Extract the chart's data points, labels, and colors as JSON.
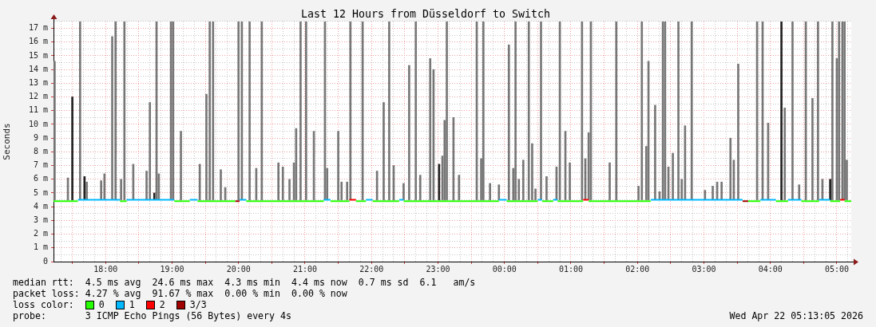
{
  "chart_data": {
    "type": "line",
    "title": "Last 12 Hours from Düsseldorf to Switch",
    "ylabel": "Seconds",
    "xlim": [
      "2026-04-21T17:13",
      "2026-04-22T05:13"
    ],
    "ylim": [
      0,
      17.5
    ],
    "xticks": [
      {
        "value": "2026-04-21T17:20",
        "label": null
      },
      {
        "value": "2026-04-21T17:30",
        "label": null
      },
      {
        "value": "2026-04-21T17:40",
        "label": null
      },
      {
        "value": "2026-04-21T17:50",
        "label": null
      },
      {
        "value": "2026-04-21T18:00",
        "label": "18:00"
      },
      {
        "value": "2026-04-21T18:10",
        "label": null
      },
      {
        "value": "2026-04-21T18:20",
        "label": null
      },
      {
        "value": "2026-04-21T18:30",
        "label": null
      },
      {
        "value": "2026-04-21T18:40",
        "label": null
      },
      {
        "value": "2026-04-21T18:50",
        "label": null
      },
      {
        "value": "2026-04-21T19:00",
        "label": "19:00"
      },
      {
        "value": "2026-04-21T19:10",
        "label": null
      },
      {
        "value": "2026-04-21T19:20",
        "label": null
      },
      {
        "value": "2026-04-21T19:30",
        "label": null
      },
      {
        "value": "2026-04-21T19:40",
        "label": null
      },
      {
        "value": "2026-04-21T19:50",
        "label": null
      },
      {
        "value": "2026-04-21T20:00",
        "label": "20:00"
      },
      {
        "value": "2026-04-21T20:10",
        "label": null
      },
      {
        "value": "2026-04-21T20:20",
        "label": null
      },
      {
        "value": "2026-04-21T20:30",
        "label": null
      },
      {
        "value": "2026-04-21T20:40",
        "label": null
      },
      {
        "value": "2026-04-21T20:50",
        "label": null
      },
      {
        "value": "2026-04-21T21:00",
        "label": "21:00"
      },
      {
        "value": "2026-04-21T21:10",
        "label": null
      },
      {
        "value": "2026-04-21T21:20",
        "label": null
      },
      {
        "value": "2026-04-21T21:30",
        "label": null
      },
      {
        "value": "2026-04-21T21:40",
        "label": null
      },
      {
        "value": "2026-04-21T21:50",
        "label": null
      },
      {
        "value": "2026-04-21T22:00",
        "label": "22:00"
      },
      {
        "value": "2026-04-21T22:10",
        "label": null
      },
      {
        "value": "2026-04-21T22:20",
        "label": null
      },
      {
        "value": "2026-04-21T22:30",
        "label": null
      },
      {
        "value": "2026-04-21T22:40",
        "label": null
      },
      {
        "value": "2026-04-21T22:50",
        "label": null
      },
      {
        "value": "2026-04-21T23:00",
        "label": "23:00"
      },
      {
        "value": "2026-04-21T23:10",
        "label": null
      },
      {
        "value": "2026-04-21T23:20",
        "label": null
      },
      {
        "value": "2026-04-21T23:30",
        "label": null
      },
      {
        "value": "2026-04-21T23:40",
        "label": null
      },
      {
        "value": "2026-04-21T23:50",
        "label": null
      },
      {
        "value": "2026-04-22T00:00",
        "label": "00:00"
      },
      {
        "value": "2026-04-22T00:10",
        "label": null
      },
      {
        "value": "2026-04-22T00:20",
        "label": null
      },
      {
        "value": "2026-04-22T00:30",
        "label": null
      },
      {
        "value": "2026-04-22T00:40",
        "label": null
      },
      {
        "value": "2026-04-22T00:50",
        "label": null
      },
      {
        "value": "2026-04-22T01:00",
        "label": "01:00"
      },
      {
        "value": "2026-04-22T01:10",
        "label": null
      },
      {
        "value": "2026-04-22T01:20",
        "label": null
      },
      {
        "value": "2026-04-22T01:30",
        "label": null
      },
      {
        "value": "2026-04-22T01:40",
        "label": null
      },
      {
        "value": "2026-04-22T01:50",
        "label": null
      },
      {
        "value": "2026-04-22T02:00",
        "label": "02:00"
      },
      {
        "value": "2026-04-22T02:10",
        "label": null
      },
      {
        "value": "2026-04-22T02:20",
        "label": null
      },
      {
        "value": "2026-04-22T02:30",
        "label": null
      },
      {
        "value": "2026-04-22T02:40",
        "label": null
      },
      {
        "value": "2026-04-22T02:50",
        "label": null
      },
      {
        "value": "2026-04-22T03:00",
        "label": "03:00"
      },
      {
        "value": "2026-04-22T03:10",
        "label": null
      },
      {
        "value": "2026-04-22T03:20",
        "label": null
      },
      {
        "value": "2026-04-22T03:30",
        "label": null
      },
      {
        "value": "2026-04-22T03:40",
        "label": null
      },
      {
        "value": "2026-04-22T03:50",
        "label": null
      },
      {
        "value": "2026-04-22T04:00",
        "label": "04:00"
      },
      {
        "value": "2026-04-22T04:10",
        "label": null
      },
      {
        "value": "2026-04-22T04:20",
        "label": null
      },
      {
        "value": "2026-04-22T04:30",
        "label": null
      },
      {
        "value": "2026-04-22T04:40",
        "label": null
      },
      {
        "value": "2026-04-22T04:50",
        "label": null
      },
      {
        "value": "2026-04-22T05:00",
        "label": "05:00"
      },
      {
        "value": "2026-04-22T05:10",
        "label": null
      }
    ],
    "yticks": [
      0,
      {
        "value": 0.5,
        "label": null
      },
      {
        "value": 1,
        "label": "1 m"
      },
      {
        "value": 1.5,
        "label": null
      },
      {
        "value": 2,
        "label": "2 m"
      },
      {
        "value": 2.5,
        "label": null
      },
      {
        "value": 3,
        "label": "3 m"
      },
      {
        "value": 3.5,
        "label": null
      },
      {
        "value": 4,
        "label": "4 m"
      },
      {
        "value": 4.5,
        "label": null
      },
      {
        "value": 5,
        "label": "5 m"
      },
      {
        "value": 5.5,
        "label": null
      },
      {
        "value": 6,
        "label": "6 m"
      },
      {
        "value": 6.5,
        "label": null
      },
      {
        "value": 7,
        "label": "7 m"
      },
      {
        "value": 7.5,
        "label": null
      },
      {
        "value": 8,
        "label": "8 m"
      },
      {
        "value": 8.5,
        "label": null
      },
      {
        "value": 9,
        "label": "9 m"
      },
      {
        "value": 9.5,
        "label": null
      },
      {
        "value": 10,
        "label": "10 m"
      },
      {
        "value": 10.5,
        "label": null
      },
      {
        "value": 11,
        "label": "11 m"
      },
      {
        "value": 11.5,
        "label": null
      },
      {
        "value": 12,
        "label": "12 m"
      },
      {
        "value": 12.5,
        "label": null
      },
      {
        "value": 13,
        "label": "13 m"
      },
      {
        "value": 13.5,
        "label": null
      },
      {
        "value": 14,
        "label": "14 m"
      },
      {
        "value": 14.5,
        "label": null
      },
      {
        "value": 15,
        "label": "15 m"
      },
      {
        "value": 15.5,
        "label": null
      },
      {
        "value": 16,
        "label": "16 m"
      },
      {
        "value": 16.5,
        "label": null
      },
      {
        "value": 17,
        "label": "17 m"
      },
      {
        "value": 17.5,
        "label": null
      }
    ],
    "grid": true,
    "legend": "bottom left",
    "legend_title": "loss color:",
    "series": [
      {
        "type": "bar",
        "color": "#777777",
        "x": [
          "2026-04-21T17:14",
          "2026-04-21T17:26",
          "2026-04-21T17:37",
          "2026-04-21T17:43",
          "2026-04-21T17:56",
          "2026-04-21T17:59",
          "2026-04-21T18:06",
          "2026-04-21T18:09",
          "2026-04-21T18:14",
          "2026-04-21T18:17",
          "2026-04-21T18:25",
          "2026-04-21T18:37",
          "2026-04-21T18:40",
          "2026-04-21T18:46",
          "2026-04-21T18:48",
          "2026-04-21T18:59",
          "2026-04-21T19:01",
          "2026-04-21T19:08",
          "2026-04-21T19:25",
          "2026-04-21T19:31",
          "2026-04-21T19:34",
          "2026-04-21T19:37",
          "2026-04-21T19:44",
          "2026-04-21T19:48",
          "2026-04-21T20:00",
          "2026-04-21T20:03",
          "2026-04-21T20:10",
          "2026-04-21T20:16",
          "2026-04-21T20:21",
          "2026-04-21T20:36",
          "2026-04-21T20:40",
          "2026-04-21T20:46",
          "2026-04-21T20:50",
          "2026-04-21T20:52",
          "2026-04-21T20:56",
          "2026-04-21T21:01",
          "2026-04-21T21:08",
          "2026-04-21T21:18",
          "2026-04-21T21:20",
          "2026-04-21T21:30",
          "2026-04-21T21:33",
          "2026-04-21T21:38",
          "2026-04-21T21:41",
          "2026-04-21T21:52",
          "2026-04-21T22:05",
          "2026-04-21T22:11",
          "2026-04-21T22:16",
          "2026-04-21T22:20",
          "2026-04-21T22:29",
          "2026-04-21T22:34",
          "2026-04-21T22:40",
          "2026-04-21T22:44",
          "2026-04-21T22:53",
          "2026-04-21T22:56",
          "2026-04-21T23:04",
          "2026-04-21T23:06",
          "2026-04-21T23:08",
          "2026-04-21T23:14",
          "2026-04-21T23:19",
          "2026-04-21T23:35",
          "2026-04-21T23:39",
          "2026-04-21T23:41",
          "2026-04-21T23:47",
          "2026-04-21T23:55",
          "2026-04-22T00:04",
          "2026-04-22T00:08",
          "2026-04-22T00:10",
          "2026-04-22T00:13",
          "2026-04-22T00:17",
          "2026-04-22T00:22",
          "2026-04-22T00:25",
          "2026-04-22T00:28",
          "2026-04-22T00:33",
          "2026-04-22T00:38",
          "2026-04-22T00:47",
          "2026-04-22T00:50",
          "2026-04-22T00:55",
          "2026-04-22T00:59",
          "2026-04-22T01:10",
          "2026-04-22T01:13",
          "2026-04-22T01:16",
          "2026-04-22T01:18",
          "2026-04-22T01:35",
          "2026-04-22T01:41",
          "2026-04-22T02:01",
          "2026-04-22T02:04",
          "2026-04-22T02:08",
          "2026-04-22T02:10",
          "2026-04-22T02:16",
          "2026-04-22T02:20",
          "2026-04-22T02:23",
          "2026-04-22T02:25",
          "2026-04-22T02:28",
          "2026-04-22T02:32",
          "2026-04-22T02:37",
          "2026-04-22T02:40",
          "2026-04-22T02:43",
          "2026-04-22T02:49",
          "2026-04-22T03:01",
          "2026-04-22T03:08",
          "2026-04-22T03:12",
          "2026-04-22T03:16",
          "2026-04-22T03:24",
          "2026-04-22T03:27",
          "2026-04-22T03:31",
          "2026-04-22T03:48",
          "2026-04-22T03:53",
          "2026-04-22T03:58",
          "2026-04-22T04:13",
          "2026-04-22T04:20",
          "2026-04-22T04:26",
          "2026-04-22T04:32",
          "2026-04-22T04:38",
          "2026-04-22T04:43",
          "2026-04-22T04:47",
          "2026-04-22T04:56",
          "2026-04-22T05:00",
          "2026-04-22T05:02",
          "2026-04-22T05:05",
          "2026-04-22T05:07",
          "2026-04-22T05:09"
        ],
        "values": [
          10.1,
          1.6,
          13.0,
          1.3,
          1.4,
          1.9,
          11.9,
          13.0,
          1.5,
          13.0,
          2.6,
          2.1,
          7.1,
          13.0,
          1.9,
          13.0,
          13.0,
          5.0,
          2.6,
          7.7,
          13.0,
          13.0,
          2.2,
          0.9,
          13.0,
          13.0,
          13.0,
          2.3,
          13.0,
          2.7,
          2.4,
          1.5,
          2.7,
          5.2,
          13.0,
          13.0,
          5.0,
          13.0,
          2.3,
          5.0,
          1.3,
          1.3,
          13.0,
          13.0,
          2.1,
          7.1,
          13.0,
          2.5,
          1.2,
          9.8,
          13.0,
          1.8,
          10.3,
          9.5,
          3.2,
          5.8,
          13.0,
          6.0,
          1.8,
          13.0,
          3.0,
          13.0,
          1.2,
          1.1,
          11.3,
          2.3,
          13.0,
          1.5,
          2.9,
          13.0,
          4.1,
          0.8,
          13.0,
          1.7,
          2.4,
          13.0,
          5.0,
          2.7,
          13.0,
          3.0,
          4.9,
          13.0,
          2.7,
          13.0,
          1.0,
          13.0,
          3.9,
          10.1,
          6.9,
          0.6,
          13.0,
          13.0,
          2.4,
          3.4,
          13.0,
          1.5,
          5.4,
          13.0,
          0.7,
          1.0,
          1.3,
          1.3,
          4.5,
          2.9,
          9.9,
          13.0,
          13.0,
          5.6,
          6.7,
          13.0,
          1.1,
          13.0,
          7.4,
          13.0,
          1.5,
          13.0,
          10.3,
          13.0,
          13.0,
          13.0,
          2.9
        ],
        "base": [
          4.5,
          4.5,
          4.5,
          4.5,
          4.5,
          4.5,
          4.5,
          4.5,
          4.5,
          4.5,
          4.5,
          4.5,
          4.5,
          4.5,
          4.5,
          4.5,
          4.5,
          4.5,
          4.5,
          4.5,
          4.5,
          4.5,
          4.5,
          4.5,
          4.5,
          4.5,
          4.5,
          4.5,
          4.5,
          4.5,
          4.5,
          4.5,
          4.5,
          4.5,
          4.5,
          4.5,
          4.5,
          4.5,
          4.5,
          4.5,
          4.5,
          4.5,
          4.5,
          4.5,
          4.5,
          4.5,
          4.5,
          4.5,
          4.5,
          4.5,
          4.5,
          4.5,
          4.5,
          4.5,
          4.5,
          4.5,
          4.5,
          4.5,
          4.5,
          4.5,
          4.5,
          4.5,
          4.5,
          4.5,
          4.5,
          4.5,
          4.5,
          4.5,
          4.5,
          4.5,
          4.5,
          4.5,
          4.5,
          4.5,
          4.5,
          4.5,
          4.5,
          4.5,
          4.5,
          4.5,
          4.5,
          4.5,
          4.5,
          4.5,
          4.5,
          4.5,
          4.5,
          4.5,
          4.5,
          4.5,
          4.5,
          4.5,
          4.5,
          4.5,
          4.5,
          4.5,
          4.5,
          4.5,
          4.5,
          4.5,
          4.5,
          4.5,
          4.5,
          4.5,
          4.5,
          4.5,
          4.5,
          4.5,
          4.5,
          4.5,
          4.5,
          4.5,
          4.5,
          4.5,
          4.5,
          4.5,
          4.5,
          4.5,
          4.5,
          4.5,
          4.5
        ]
      },
      {
        "type": "bar",
        "color": "#222222",
        "x": [
          "2026-04-21T17:30",
          "2026-04-21T17:41",
          "2026-04-21T18:44",
          "2026-04-21T23:01",
          "2026-04-22T04:10",
          "2026-04-22T04:54"
        ],
        "values": [
          7.5,
          1.7,
          0.5,
          2.6,
          13.0,
          1.5
        ],
        "base": [
          4.5,
          4.5,
          4.5,
          4.5,
          4.5,
          4.5
        ]
      },
      {
        "name": "0",
        "color": "#26ff00",
        "x": [
          "2026-04-21T17:13",
          "2026-04-21T17:35",
          "2026-04-21T17:50",
          "2026-04-21T18:13",
          "2026-04-21T18:19",
          "2026-04-21T18:40",
          "2026-04-21T19:02",
          "2026-04-21T19:16",
          "2026-04-21T19:20",
          "2026-04-21T19:23",
          "2026-04-21T19:57",
          "2026-04-21T20:04",
          "2026-04-21T20:07",
          "2026-04-21T21:17",
          "2026-04-21T21:20",
          "2026-04-21T21:23",
          "2026-04-21T21:40",
          "2026-04-21T21:43",
          "2026-04-21T21:46",
          "2026-04-21T21:55",
          "2026-04-21T21:58",
          "2026-04-21T22:01",
          "2026-04-21T22:25",
          "2026-04-21T22:27",
          "2026-04-21T22:29",
          "2026-04-21T23:55",
          "2026-04-21T23:58",
          "2026-04-22T00:02",
          "2026-04-22T00:30",
          "2026-04-22T00:32",
          "2026-04-22T00:34",
          "2026-04-22T00:44",
          "2026-04-22T00:46",
          "2026-04-22T00:48",
          "2026-04-22T01:11",
          "2026-04-22T01:13",
          "2026-04-22T01:16",
          "2026-04-22T02:12",
          "2026-04-22T03:00",
          "2026-04-22T03:40",
          "2026-04-22T03:51",
          "2026-04-22T03:58",
          "2026-04-22T04:05",
          "2026-04-22T04:16",
          "2026-04-22T04:22",
          "2026-04-22T04:28",
          "2026-04-22T04:44",
          "2026-04-22T04:49",
          "2026-04-22T04:54",
          "2026-04-22T05:03",
          "2026-04-22T05:05",
          "2026-04-22T05:07",
          "2026-04-22T05:13"
        ],
        "values": [
          4.4,
          4.4,
          null,
          4.4,
          4.4,
          null,
          4.4,
          4.4,
          null,
          4.4,
          4.4,
          null,
          4.4,
          4.4,
          null,
          4.4,
          4.4,
          null,
          4.4,
          4.4,
          null,
          4.4,
          4.4,
          null,
          4.4,
          4.4,
          null,
          4.4,
          4.4,
          null,
          4.4,
          4.4,
          null,
          4.4,
          4.4,
          null,
          4.4,
          4.4,
          null,
          4.4,
          4.4,
          null,
          4.4,
          4.4,
          null,
          4.4,
          4.4,
          null,
          4.4,
          4.4,
          null,
          4.4,
          4.4
        ]
      },
      {
        "name": "1",
        "color": "#00b8ff",
        "x": [
          "2026-04-21T17:35",
          "2026-04-21T18:13",
          "2026-04-21T18:16",
          "2026-04-21T18:19",
          "2026-04-21T19:02",
          "2026-04-21T19:09",
          "2026-04-21T19:16",
          "2026-04-21T19:23",
          "2026-04-21T19:40",
          "2026-04-21T20:01",
          "2026-04-21T20:07",
          "2026-04-21T20:40",
          "2026-04-21T21:17",
          "2026-04-21T21:23",
          "2026-04-21T21:35",
          "2026-04-21T21:55",
          "2026-04-21T22:01",
          "2026-04-21T22:10",
          "2026-04-21T22:25",
          "2026-04-21T22:29",
          "2026-04-21T23:00",
          "2026-04-21T23:55",
          "2026-04-22T00:02",
          "2026-04-22T00:15",
          "2026-04-22T00:30",
          "2026-04-22T00:34",
          "2026-04-22T00:39",
          "2026-04-22T00:44",
          "2026-04-22T00:48",
          "2026-04-22T01:30",
          "2026-04-22T02:12",
          "2026-04-22T03:35",
          "2026-04-22T03:45",
          "2026-04-22T03:51",
          "2026-04-22T04:05",
          "2026-04-22T04:10",
          "2026-04-22T04:16",
          "2026-04-22T04:28",
          "2026-04-22T04:35",
          "2026-04-22T04:44",
          "2026-04-22T04:54"
        ],
        "values": [
          4.5,
          4.5,
          null,
          4.5,
          4.5,
          null,
          4.5,
          4.5,
          null,
          4.5,
          4.5,
          null,
          4.5,
          4.5,
          null,
          4.5,
          4.5,
          null,
          4.5,
          4.5,
          null,
          4.5,
          4.5,
          null,
          4.5,
          4.5,
          null,
          4.5,
          4.5,
          null,
          4.5,
          4.5,
          null,
          4.5,
          4.5,
          null,
          4.5,
          4.5,
          null,
          4.5,
          4.5
        ]
      },
      {
        "name": "2",
        "color": "#ff0000",
        "x": [
          "2026-04-21T21:40",
          "2026-04-21T21:46",
          "2026-04-21T23:00",
          "2026-04-22T01:11",
          "2026-04-22T01:16",
          "2026-04-22T03:00",
          "2026-04-22T05:03",
          "2026-04-22T05:07"
        ],
        "values": [
          4.5,
          4.5,
          null,
          4.5,
          4.5,
          null,
          4.5,
          4.5
        ]
      },
      {
        "name": "3/3",
        "color": "#a10000",
        "x": [
          "2026-04-21T19:57",
          "2026-04-21T20:01",
          "2026-04-22T00:00",
          "2026-04-22T03:35",
          "2026-04-22T03:40"
        ],
        "values": [
          4.4,
          4.4,
          null,
          4.4,
          4.4
        ]
      }
    ],
    "annotations": [
      "median rtt:  4.5 ms avg  24.6 ms max  4.3 ms min  4.4 ms now  0.7 ms sd  6.1   am/s",
      "packet loss: 4.27 % avg  91.67 % max  0.00 % min  0.00 % now",
      "probe:       3 ICMP Echo Pings (56 Bytes) every 4s",
      "Wed Apr 22 05:13:05 2026"
    ]
  }
}
